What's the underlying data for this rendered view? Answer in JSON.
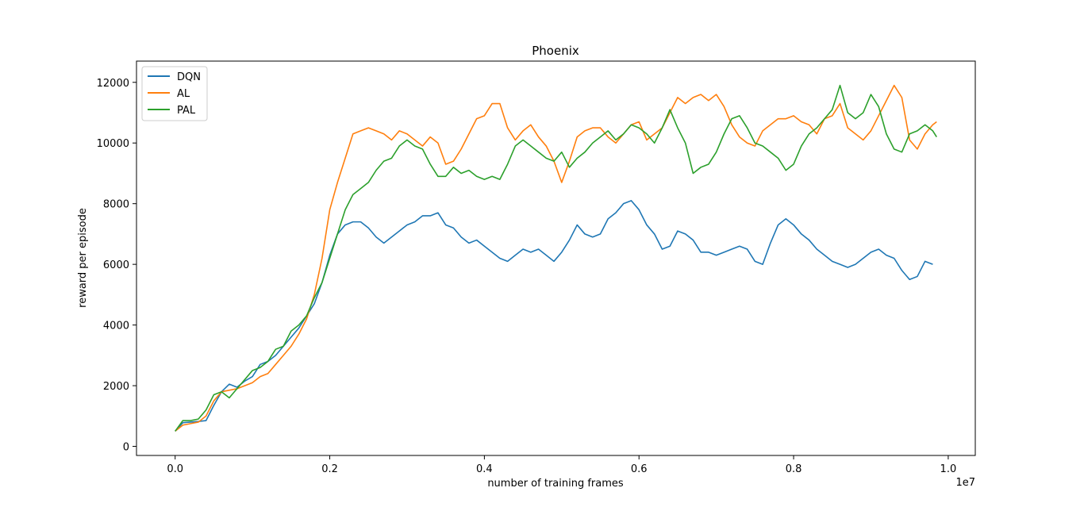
{
  "chart_data": {
    "type": "line",
    "title": "Phoenix",
    "xlabel": "number of training frames",
    "ylabel": "reward per episode",
    "x_offset_text": "1e7",
    "x_scale": 10000000,
    "xlim": [
      -0.05,
      1.035
    ],
    "ylim": [
      -300,
      12700
    ],
    "x_ticks": [
      0.0,
      0.2,
      0.4,
      0.6,
      0.8,
      1.0
    ],
    "x_tick_labels": [
      "0.0",
      "0.2",
      "0.4",
      "0.6",
      "0.8",
      "1.0"
    ],
    "y_ticks": [
      0,
      2000,
      4000,
      6000,
      8000,
      10000,
      12000
    ],
    "y_tick_labels": [
      "0",
      "2000",
      "4000",
      "6000",
      "8000",
      "10000",
      "12000"
    ],
    "grid": false,
    "legend_position": "top-left",
    "series": [
      {
        "name": "DQN",
        "color": "#1f77b4",
        "x": [
          0.0,
          0.01,
          0.02,
          0.03,
          0.04,
          0.05,
          0.06,
          0.07,
          0.08,
          0.09,
          0.1,
          0.11,
          0.12,
          0.13,
          0.14,
          0.15,
          0.16,
          0.17,
          0.18,
          0.19,
          0.2,
          0.21,
          0.22,
          0.23,
          0.24,
          0.25,
          0.26,
          0.27,
          0.28,
          0.29,
          0.3,
          0.31,
          0.32,
          0.33,
          0.34,
          0.35,
          0.36,
          0.37,
          0.38,
          0.39,
          0.4,
          0.41,
          0.42,
          0.43,
          0.44,
          0.45,
          0.46,
          0.47,
          0.48,
          0.49,
          0.5,
          0.51,
          0.52,
          0.53,
          0.54,
          0.55,
          0.56,
          0.57,
          0.58,
          0.59,
          0.6,
          0.61,
          0.62,
          0.63,
          0.64,
          0.65,
          0.66,
          0.67,
          0.68,
          0.69,
          0.7,
          0.71,
          0.72,
          0.73,
          0.74,
          0.75,
          0.76,
          0.77,
          0.78,
          0.79,
          0.8,
          0.81,
          0.82,
          0.83,
          0.84,
          0.85,
          0.86,
          0.87,
          0.88,
          0.89,
          0.9,
          0.91,
          0.92,
          0.93,
          0.94,
          0.95,
          0.96,
          0.97,
          0.98
        ],
        "y": [
          500,
          780,
          800,
          820,
          850,
          1350,
          1800,
          2050,
          1950,
          2150,
          2300,
          2700,
          2800,
          3000,
          3300,
          3600,
          3900,
          4300,
          4700,
          5400,
          6300,
          7000,
          7300,
          7400,
          7400,
          7200,
          6900,
          6700,
          6900,
          7100,
          7300,
          7400,
          7600,
          7600,
          7700,
          7300,
          7200,
          6900,
          6700,
          6800,
          6600,
          6400,
          6200,
          6100,
          6300,
          6500,
          6400,
          6500,
          6300,
          6100,
          6400,
          6800,
          7300,
          7000,
          6900,
          7000,
          7500,
          7700,
          8000,
          8100,
          7800,
          7300,
          7000,
          6500,
          6600,
          7100,
          7000,
          6800,
          6400,
          6400,
          6300,
          6400,
          6500,
          6600,
          6500,
          6100,
          6000,
          6700,
          7300,
          7500,
          7300,
          7000,
          6800,
          6500,
          6300,
          6100,
          6000,
          5900,
          6000,
          6200,
          6400,
          6500,
          6300,
          6200,
          5800,
          5500,
          5600,
          6100,
          6000
        ]
      },
      {
        "name": "AL",
        "color": "#ff7f0e",
        "x": [
          0.0,
          0.01,
          0.02,
          0.03,
          0.04,
          0.05,
          0.06,
          0.07,
          0.08,
          0.09,
          0.1,
          0.11,
          0.12,
          0.13,
          0.14,
          0.15,
          0.16,
          0.17,
          0.18,
          0.19,
          0.2,
          0.21,
          0.22,
          0.23,
          0.24,
          0.25,
          0.26,
          0.27,
          0.28,
          0.29,
          0.3,
          0.31,
          0.32,
          0.33,
          0.34,
          0.35,
          0.36,
          0.37,
          0.38,
          0.39,
          0.4,
          0.41,
          0.42,
          0.43,
          0.44,
          0.45,
          0.46,
          0.47,
          0.48,
          0.49,
          0.5,
          0.51,
          0.52,
          0.53,
          0.54,
          0.55,
          0.56,
          0.57,
          0.58,
          0.59,
          0.6,
          0.61,
          0.62,
          0.63,
          0.64,
          0.65,
          0.66,
          0.67,
          0.68,
          0.69,
          0.7,
          0.71,
          0.72,
          0.73,
          0.74,
          0.75,
          0.76,
          0.77,
          0.78,
          0.79,
          0.8,
          0.81,
          0.82,
          0.83,
          0.84,
          0.85,
          0.86,
          0.87,
          0.88,
          0.89,
          0.9,
          0.91,
          0.92,
          0.93,
          0.94,
          0.95,
          0.96,
          0.97,
          0.98,
          0.985
        ],
        "y": [
          500,
          700,
          750,
          800,
          1000,
          1500,
          1800,
          1850,
          1900,
          2000,
          2100,
          2300,
          2400,
          2700,
          3000,
          3300,
          3700,
          4200,
          5000,
          6200,
          7800,
          8700,
          9500,
          10300,
          10400,
          10500,
          10400,
          10300,
          10100,
          10400,
          10300,
          10100,
          9900,
          10200,
          10000,
          9300,
          9400,
          9800,
          10300,
          10800,
          10900,
          11300,
          11300,
          10500,
          10100,
          10400,
          10600,
          10200,
          9900,
          9400,
          8700,
          9400,
          10200,
          10400,
          10500,
          10500,
          10200,
          10000,
          10300,
          10600,
          10700,
          10100,
          10300,
          10500,
          11000,
          11500,
          11300,
          11500,
          11600,
          11400,
          11600,
          11200,
          10600,
          10200,
          10000,
          9900,
          10400,
          10600,
          10800,
          10800,
          10900,
          10700,
          10600,
          10300,
          10800,
          10900,
          11300,
          10500,
          10300,
          10100,
          10400,
          10900,
          11400,
          11900,
          11500,
          10100,
          9800,
          10300,
          10600,
          10700
        ]
      },
      {
        "name": "PAL",
        "color": "#2ca02c",
        "x": [
          0.0,
          0.01,
          0.02,
          0.03,
          0.04,
          0.05,
          0.06,
          0.07,
          0.08,
          0.09,
          0.1,
          0.11,
          0.12,
          0.13,
          0.14,
          0.15,
          0.16,
          0.17,
          0.18,
          0.19,
          0.2,
          0.21,
          0.22,
          0.23,
          0.24,
          0.25,
          0.26,
          0.27,
          0.28,
          0.29,
          0.3,
          0.31,
          0.32,
          0.33,
          0.34,
          0.35,
          0.36,
          0.37,
          0.38,
          0.39,
          0.4,
          0.41,
          0.42,
          0.43,
          0.44,
          0.45,
          0.46,
          0.47,
          0.48,
          0.49,
          0.5,
          0.51,
          0.52,
          0.53,
          0.54,
          0.55,
          0.56,
          0.57,
          0.58,
          0.59,
          0.6,
          0.61,
          0.62,
          0.63,
          0.64,
          0.65,
          0.66,
          0.67,
          0.68,
          0.69,
          0.7,
          0.71,
          0.72,
          0.73,
          0.74,
          0.75,
          0.76,
          0.77,
          0.78,
          0.79,
          0.8,
          0.81,
          0.82,
          0.83,
          0.84,
          0.85,
          0.86,
          0.87,
          0.88,
          0.89,
          0.9,
          0.91,
          0.92,
          0.93,
          0.94,
          0.95,
          0.96,
          0.97,
          0.98,
          0.985
        ],
        "y": [
          500,
          850,
          850,
          900,
          1200,
          1700,
          1800,
          1600,
          1900,
          2200,
          2500,
          2600,
          2800,
          3200,
          3300,
          3800,
          4000,
          4300,
          4900,
          5400,
          6200,
          7000,
          7800,
          8300,
          8500,
          8700,
          9100,
          9400,
          9500,
          9900,
          10100,
          9900,
          9800,
          9300,
          8900,
          8900,
          9200,
          9000,
          9100,
          8900,
          8800,
          8900,
          8800,
          9300,
          9900,
          10100,
          9900,
          9700,
          9500,
          9400,
          9700,
          9200,
          9500,
          9700,
          10000,
          10200,
          10400,
          10100,
          10300,
          10600,
          10500,
          10300,
          10000,
          10500,
          11100,
          10500,
          10000,
          9000,
          9200,
          9300,
          9700,
          10300,
          10800,
          10900,
          10500,
          10000,
          9900,
          9700,
          9500,
          9100,
          9300,
          9900,
          10300,
          10500,
          10800,
          11100,
          11900,
          11000,
          10800,
          11000,
          11600,
          11200,
          10300,
          9800,
          9700,
          10300,
          10400,
          10600,
          10400,
          10200
        ]
      }
    ]
  }
}
